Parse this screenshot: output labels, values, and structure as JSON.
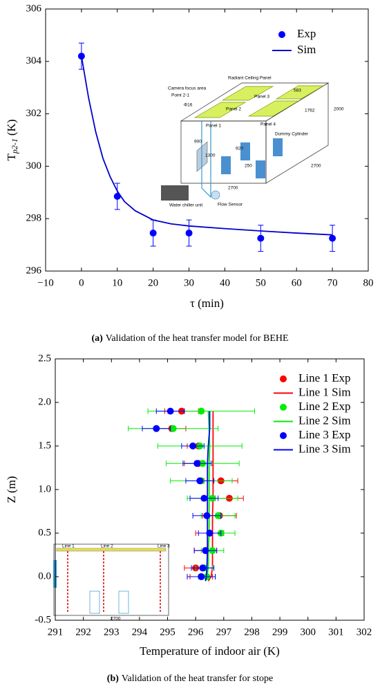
{
  "chart_data": [
    {
      "type": "scatter",
      "caption_label": "(a)",
      "caption": "Validation of the heat transfer model for BEHE",
      "x_label": "τ (min)",
      "y_label": "T",
      "y_label_sub": "p2-1",
      "y_label_unit": "(K)",
      "xlim": [
        -10,
        80
      ],
      "xticks": [
        {
          "value": -10,
          "label": "−10"
        },
        0,
        10,
        20,
        30,
        40,
        50,
        60,
        70,
        80
      ],
      "ylim": [
        296,
        306
      ],
      "yticks": [
        296,
        298,
        300,
        302,
        304,
        306
      ],
      "legend": "upper right",
      "series": [
        {
          "name": "Exp",
          "type": "scatter",
          "color": "#0000ff",
          "x": [
            0,
            10,
            20,
            30,
            50,
            70
          ],
          "values": [
            304.2,
            298.85,
            297.45,
            297.45,
            297.25,
            297.25
          ],
          "yerr": [
            0.5,
            0.5,
            0.5,
            0.5,
            0.5,
            0.5
          ]
        },
        {
          "name": "Sim",
          "type": "line",
          "color": "#0000cc",
          "x": [
            0,
            2,
            4,
            6,
            8,
            10,
            12,
            15,
            20,
            25,
            30,
            40,
            50,
            60,
            70
          ],
          "values": [
            304.2,
            302.6,
            301.3,
            300.3,
            299.6,
            299.05,
            298.65,
            298.3,
            297.95,
            297.8,
            297.72,
            297.62,
            297.53,
            297.45,
            297.38
          ]
        }
      ],
      "inset_labels": [
        "Radiant Ceiling Panel",
        "Camera focus area",
        "Point 2-1",
        "Panel 3",
        "Panel 2",
        "583",
        "1762",
        "Φ16",
        "Panel 4",
        "Panel 1",
        "Dummy Cylinder",
        "2000",
        "900",
        "920",
        "1300",
        "250",
        "2700",
        "2700",
        "Water chiller unit",
        "Flow Sensor"
      ]
    },
    {
      "type": "scatter",
      "caption_label": "(b)",
      "caption": "Validation of the heat transfer for stope",
      "x_label": "Temperature of indoor air (K)",
      "y_label": "Z (m)",
      "xlim": [
        291,
        302
      ],
      "xticks": [
        291,
        292,
        293,
        294,
        295,
        296,
        297,
        298,
        299,
        300,
        301,
        302
      ],
      "ylim": [
        -0.5,
        2.5
      ],
      "yticks": [
        -0.5,
        {
          "value": 0,
          "label": "0.0"
        },
        0.5,
        {
          "value": 1,
          "label": "1.0"
        },
        1.5,
        {
          "value": 2,
          "label": "2.0"
        },
        2.5
      ],
      "legend": "upper right",
      "series": [
        {
          "name": "Line 1 Exp",
          "type": "scatter",
          "color": "#ff0000",
          "x": [
            295.5,
            295.15,
            296.1,
            296.1,
            296.9,
            297.2,
            296.85,
            296.5,
            296.35,
            296.0,
            296.2
          ],
          "values": [
            1.9,
            1.7,
            1.5,
            1.3,
            1.1,
            0.9,
            0.7,
            0.5,
            0.3,
            0.1,
            0.0
          ],
          "xerr": [
            0.6,
            0.5,
            0.4,
            0.5,
            0.6,
            0.5,
            0.6,
            0.5,
            0.4,
            0.4,
            0.4
          ]
        },
        {
          "name": "Line 1 Sim",
          "type": "line",
          "color": "#ff0000",
          "x": [
            296.45,
            296.55,
            296.6,
            296.6,
            296.6,
            296.6,
            296.62,
            296.62,
            296.62,
            296.62,
            296.62,
            296.62
          ],
          "values": [
            -0.05,
            0.0,
            0.1,
            0.3,
            0.5,
            0.7,
            0.9,
            1.1,
            1.3,
            1.5,
            1.7,
            1.9
          ]
        },
        {
          "name": "Line 2 Exp",
          "type": "scatter",
          "color": "#00ee00",
          "x": [
            296.2,
            295.2,
            296.15,
            296.25,
            296.2,
            296.6,
            296.8,
            296.9,
            296.6,
            296.3,
            296.4
          ],
          "values": [
            1.9,
            1.7,
            1.5,
            1.3,
            1.1,
            0.9,
            0.7,
            0.5,
            0.3,
            0.1,
            0.0
          ],
          "xerr": [
            1.9,
            1.6,
            1.5,
            1.3,
            1.1,
            0.9,
            0.6,
            0.5,
            0.4,
            0.3,
            0.3
          ]
        },
        {
          "name": "Line 2 Sim",
          "type": "line",
          "color": "#00ee00",
          "x": [
            296.35,
            296.4,
            296.45,
            296.45,
            296.48,
            296.48,
            296.48,
            296.48,
            296.48,
            296.5,
            296.48,
            296.45
          ],
          "values": [
            -0.05,
            0.0,
            0.1,
            0.3,
            0.5,
            0.7,
            0.9,
            1.1,
            1.3,
            1.5,
            1.7,
            1.9
          ]
        },
        {
          "name": "Line 3 Exp",
          "type": "scatter",
          "color": "#0000ff",
          "x": [
            295.1,
            294.6,
            295.9,
            296.05,
            296.15,
            296.3,
            296.4,
            296.5,
            296.35,
            296.25,
            296.2
          ],
          "values": [
            1.9,
            1.7,
            1.5,
            1.3,
            1.1,
            0.9,
            0.7,
            0.5,
            0.3,
            0.1,
            0.0
          ],
          "xerr": [
            0.5,
            0.5,
            0.4,
            0.5,
            0.5,
            0.5,
            0.5,
            0.4,
            0.4,
            0.4,
            0.5
          ]
        },
        {
          "name": "Line 3 Sim",
          "type": "line",
          "color": "#0000ff",
          "x": [
            296.35,
            296.38,
            296.4,
            296.42,
            296.42,
            296.42,
            296.42,
            296.42,
            296.42,
            296.45,
            296.5,
            296.5
          ],
          "values": [
            -0.05,
            0.0,
            0.1,
            0.3,
            0.5,
            0.7,
            0.9,
            1.1,
            1.3,
            1.5,
            1.7,
            1.9
          ]
        }
      ],
      "inset_labels": [
        "Line 1",
        "Line 2",
        "Line 3",
        "2700"
      ]
    }
  ]
}
